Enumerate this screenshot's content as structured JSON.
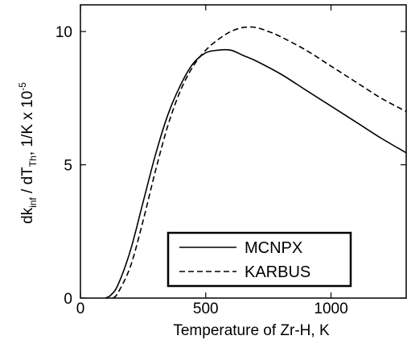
{
  "chart_data": {
    "type": "line",
    "title": "",
    "xlabel": "Temperature of Zr-H, K",
    "ylabel": {
      "parts": [
        "dk",
        "inf",
        " / dT",
        "Th",
        ",",
        "   1/K x 10",
        "-5"
      ]
    },
    "xlim": [
      0,
      1300
    ],
    "ylim": [
      0,
      11
    ],
    "x_ticks": [
      0,
      500,
      1000
    ],
    "y_ticks": [
      0,
      5,
      10
    ],
    "grid": false,
    "legend_position": "bottom-right",
    "series": [
      {
        "name": "MCNPX",
        "style": "solid",
        "color": "#000000",
        "x": [
          100,
          120,
          150,
          200,
          250,
          300,
          350,
          400,
          450,
          500,
          550,
          600,
          650,
          700,
          800,
          900,
          1000,
          1100,
          1200,
          1300
        ],
        "y": [
          0.0,
          0.1,
          0.5,
          1.8,
          3.6,
          5.4,
          6.9,
          8.0,
          8.8,
          9.2,
          9.3,
          9.3,
          9.1,
          8.9,
          8.4,
          7.8,
          7.2,
          6.6,
          6.0,
          5.45
        ]
      },
      {
        "name": "KARBUS",
        "style": "dashed",
        "color": "#000000",
        "x": [
          130,
          150,
          200,
          250,
          300,
          350,
          400,
          450,
          500,
          550,
          600,
          650,
          700,
          750,
          800,
          900,
          1000,
          1100,
          1200,
          1300
        ],
        "y": [
          0.0,
          0.2,
          1.2,
          2.9,
          4.8,
          6.5,
          7.8,
          8.7,
          9.3,
          9.7,
          10.0,
          10.15,
          10.15,
          10.0,
          9.8,
          9.3,
          8.7,
          8.1,
          7.5,
          7.0
        ]
      }
    ]
  }
}
